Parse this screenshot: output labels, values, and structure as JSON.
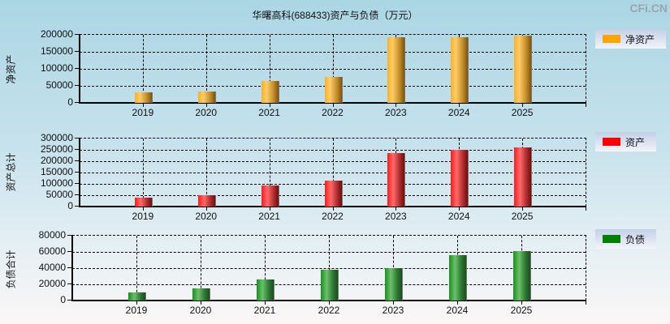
{
  "title": "华曙高科(688433)资产与负债（万元）",
  "watermark": "CFi.CN",
  "categories": [
    "2019",
    "2020",
    "2021",
    "2022",
    "2023",
    "2024",
    "2025"
  ],
  "panels": [
    {
      "ylabel": "净资产",
      "legend": "净资产",
      "color": "#ffa500",
      "yticks": [
        "0",
        "50000",
        "100000",
        "150000",
        "200000"
      ],
      "ymax": 200000
    },
    {
      "ylabel": "资产总计",
      "legend": "资产",
      "color": "#ff0000",
      "yticks": [
        "0",
        "50000",
        "100000",
        "150000",
        "200000",
        "250000",
        "300000"
      ],
      "ymax": 300000
    },
    {
      "ylabel": "负债合计",
      "legend": "负债",
      "color": "#008000",
      "yticks": [
        "0",
        "20000",
        "40000",
        "60000",
        "80000"
      ],
      "ymax": 80000
    }
  ],
  "chart_data": [
    {
      "type": "bar",
      "title": "华曙高科(688433)资产与负债（万元）",
      "xlabel": "",
      "ylabel": "净资产",
      "categories": [
        "2019",
        "2020",
        "2021",
        "2022",
        "2023",
        "2024",
        "2025"
      ],
      "series": [
        {
          "name": "净资产",
          "color": "#ffa500",
          "values": [
            31000,
            33000,
            64000,
            76000,
            193000,
            193000,
            198000
          ]
        }
      ],
      "ylim": [
        0,
        200000
      ],
      "yticks": [
        0,
        50000,
        100000,
        150000,
        200000
      ],
      "grid": true,
      "legend_position": "right"
    },
    {
      "type": "bar",
      "xlabel": "",
      "ylabel": "资产总计",
      "categories": [
        "2019",
        "2020",
        "2021",
        "2022",
        "2023",
        "2024",
        "2025"
      ],
      "series": [
        {
          "name": "资产",
          "color": "#ff0000",
          "values": [
            40000,
            51000,
            94000,
            115000,
            234000,
            251000,
            259000
          ]
        }
      ],
      "ylim": [
        0,
        300000
      ],
      "yticks": [
        0,
        50000,
        100000,
        150000,
        200000,
        250000,
        300000
      ],
      "grid": true,
      "legend_position": "right"
    },
    {
      "type": "bar",
      "xlabel": "",
      "ylabel": "负债合计",
      "categories": [
        "2019",
        "2020",
        "2021",
        "2022",
        "2023",
        "2024",
        "2025"
      ],
      "series": [
        {
          "name": "负债",
          "color": "#008000",
          "values": [
            10000,
            15000,
            26000,
            38000,
            40000,
            56000,
            61000
          ]
        }
      ],
      "ylim": [
        0,
        80000
      ],
      "yticks": [
        0,
        20000,
        40000,
        60000,
        80000
      ],
      "grid": true,
      "legend_position": "right"
    }
  ]
}
